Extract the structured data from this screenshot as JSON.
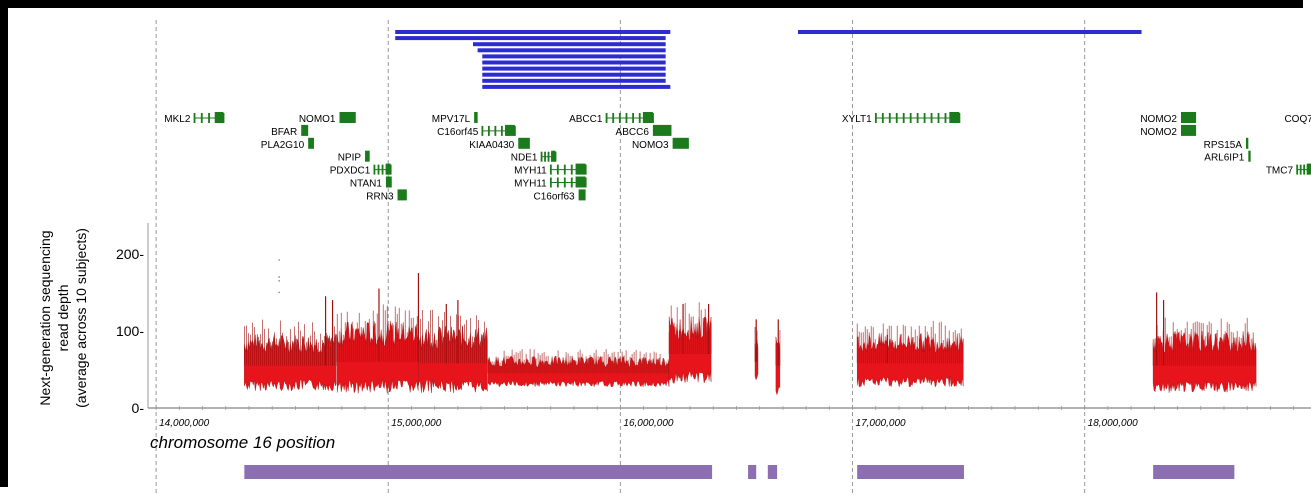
{
  "chart_data": {
    "type": "area",
    "xlabel": "chromosome  16 position",
    "ylabel_lines": [
      "Next-generation sequencing",
      "read depth",
      "(average across 10 subjects)"
    ],
    "xlim": [
      13965000,
      18975000
    ],
    "ylim": [
      0,
      240
    ],
    "x_ticks": [
      {
        "value": 14000000,
        "label": "14,000,000"
      },
      {
        "value": 15000000,
        "label": "15,000,000"
      },
      {
        "value": 16000000,
        "label": "16,000,000"
      },
      {
        "value": 17000000,
        "label": "17,000,000"
      },
      {
        "value": 18000000,
        "label": "18,000,000"
      }
    ],
    "y_ticks": [
      {
        "value": 0,
        "label": "0-"
      },
      {
        "value": 100,
        "label": "100-"
      },
      {
        "value": 200,
        "label": "200-"
      }
    ],
    "gridlines_x": [
      14000000,
      15000000,
      16000000,
      17000000,
      18000000
    ],
    "colors": {
      "depth": "#e8141b",
      "depth_dark": "#a01010",
      "gene": "#1b7a1b",
      "segdup": "#2c2cd0",
      "region": "#8c6fb0"
    },
    "segdup_bars": [
      {
        "start": 15030000,
        "end": 16215000,
        "row": 0
      },
      {
        "start": 15030000,
        "end": 16195000,
        "row": 1
      },
      {
        "start": 15365000,
        "end": 16195000,
        "row": 2
      },
      {
        "start": 15385000,
        "end": 16195000,
        "row": 3
      },
      {
        "start": 15405000,
        "end": 16195000,
        "row": 4
      },
      {
        "start": 15405000,
        "end": 16195000,
        "row": 5
      },
      {
        "start": 15405000,
        "end": 16195000,
        "row": 6
      },
      {
        "start": 15405000,
        "end": 16195000,
        "row": 7
      },
      {
        "start": 15405000,
        "end": 16195000,
        "row": 8
      },
      {
        "start": 15405000,
        "end": 16215000,
        "row": 9
      },
      {
        "start": 16765000,
        "end": 18245000,
        "row": 0
      }
    ],
    "genes": [
      {
        "name": "MKL2",
        "start": 14165000,
        "end": 14290000,
        "row": 0,
        "style": "exons",
        "label_side": "left"
      },
      {
        "name": "NOMO1",
        "start": 14790000,
        "end": 14860000,
        "row": 0,
        "style": "box",
        "label_side": "left"
      },
      {
        "name": "BFAR",
        "start": 14625000,
        "end": 14655000,
        "row": 1,
        "style": "box",
        "label_side": "left"
      },
      {
        "name": "PLA2G10",
        "start": 14655000,
        "end": 14680000,
        "row": 2,
        "style": "thin",
        "label_side": "left"
      },
      {
        "name": "NPIP",
        "start": 14900000,
        "end": 14920000,
        "row": 3,
        "style": "box",
        "label_side": "left"
      },
      {
        "name": "PDXDC1",
        "start": 14940000,
        "end": 15010000,
        "row": 4,
        "style": "exons",
        "label_side": "left"
      },
      {
        "name": "NTAN1",
        "start": 14990000,
        "end": 15015000,
        "row": 5,
        "style": "thin",
        "label_side": "left"
      },
      {
        "name": "RRN3",
        "start": 15040000,
        "end": 15080000,
        "row": 6,
        "style": "box",
        "label_side": "left"
      },
      {
        "name": "MPV17L",
        "start": 15370000,
        "end": 15385000,
        "row": 0,
        "style": "thin",
        "label_side": "left"
      },
      {
        "name": "C16orf45",
        "start": 15405000,
        "end": 15545000,
        "row": 1,
        "style": "exons",
        "label_side": "left"
      },
      {
        "name": "KIAA0430",
        "start": 15560000,
        "end": 15610000,
        "row": 2,
        "style": "box",
        "label_side": "left"
      },
      {
        "name": "NDE1",
        "start": 15660000,
        "end": 15720000,
        "row": 3,
        "style": "exons",
        "label_side": "left"
      },
      {
        "name": "MYH11",
        "start": 15700000,
        "end": 15850000,
        "row": 4,
        "style": "exons",
        "label_side": "left"
      },
      {
        "name": "MYH11",
        "start": 15700000,
        "end": 15850000,
        "row": 5,
        "style": "exons",
        "label_side": "left"
      },
      {
        "name": "C16orf63",
        "start": 15820000,
        "end": 15850000,
        "row": 6,
        "style": "box",
        "label_side": "left"
      },
      {
        "name": "ABCC1",
        "start": 15940000,
        "end": 16140000,
        "row": 0,
        "style": "exons",
        "label_side": "left"
      },
      {
        "name": "ABCC6",
        "start": 16140000,
        "end": 16220000,
        "row": 1,
        "style": "box",
        "label_side": "left"
      },
      {
        "name": "NOMO3",
        "start": 16225000,
        "end": 16295000,
        "row": 2,
        "style": "box",
        "label_side": "left"
      },
      {
        "name": "XYLT1",
        "start": 17100000,
        "end": 17460000,
        "row": 0,
        "style": "exons",
        "label_side": "left"
      },
      {
        "name": "NOMO2",
        "start": 18415000,
        "end": 18480000,
        "row": 0,
        "style": "box",
        "label_side": "left"
      },
      {
        "name": "NOMO2",
        "start": 18415000,
        "end": 18480000,
        "row": 1,
        "style": "box",
        "label_side": "left"
      },
      {
        "name": "RPS15A",
        "start": 18695000,
        "end": 18705000,
        "row": 2,
        "style": "thin",
        "label_side": "left"
      },
      {
        "name": "ARL6IP1",
        "start": 18705000,
        "end": 18715000,
        "row": 3,
        "style": "thin",
        "label_side": "left"
      },
      {
        "name": "COQ7",
        "start": 19000000,
        "end": 19000000,
        "row": 0,
        "style": "none",
        "label_side": "left"
      },
      {
        "name": "TMC7",
        "start": 18915000,
        "end": 18975000,
        "row": 4,
        "style": "exons",
        "label_side": "left"
      }
    ],
    "depth_segments": [
      {
        "start": 14380000,
        "end": 14780000,
        "mean": 55,
        "band": 30,
        "peaks": [
          {
            "x": 14730000,
            "y": 145
          },
          {
            "x": 14760000,
            "y": 140
          }
        ]
      },
      {
        "start": 14780000,
        "end": 15130000,
        "mean": 60,
        "band": 38,
        "peaks": [
          {
            "x": 14960000,
            "y": 155
          },
          {
            "x": 15130000,
            "y": 175
          }
        ]
      },
      {
        "start": 15130000,
        "end": 15430000,
        "mean": 58,
        "band": 35,
        "peaks": [
          {
            "x": 15300000,
            "y": 140
          },
          {
            "x": 15250000,
            "y": 135
          }
        ]
      },
      {
        "start": 15430000,
        "end": 16210000,
        "mean": 45,
        "band": 16,
        "peaks": []
      },
      {
        "start": 16210000,
        "end": 16395000,
        "mean": 70,
        "band": 35,
        "peaks": [
          {
            "x": 16270000,
            "y": 135
          },
          {
            "x": 16380000,
            "y": 135
          }
        ]
      },
      {
        "start": 16580000,
        "end": 16595000,
        "mean": 60,
        "band": 25,
        "peaks": [
          {
            "x": 16585000,
            "y": 115
          }
        ]
      },
      {
        "start": 16670000,
        "end": 16690000,
        "mean": 55,
        "band": 35,
        "peaks": [
          {
            "x": 16680000,
            "y": 115
          }
        ]
      },
      {
        "start": 17020000,
        "end": 17480000,
        "mean": 58,
        "band": 28,
        "peaks": [
          {
            "x": 17150000,
            "y": 95
          }
        ]
      },
      {
        "start": 18295000,
        "end": 18740000,
        "mean": 55,
        "band": 32,
        "peaks": [
          {
            "x": 18310000,
            "y": 150
          },
          {
            "x": 18340000,
            "y": 140
          }
        ]
      }
    ],
    "outlier_points": [
      {
        "x": 14530000,
        "y": 192
      },
      {
        "x": 14530000,
        "y": 170
      },
      {
        "x": 14530000,
        "y": 165
      },
      {
        "x": 14530000,
        "y": 150
      }
    ],
    "regions": [
      {
        "start": 14380000,
        "end": 16395000
      },
      {
        "start": 16550000,
        "end": 16585000
      },
      {
        "start": 16635000,
        "end": 16675000
      },
      {
        "start": 17020000,
        "end": 17480000
      },
      {
        "start": 18295000,
        "end": 18645000
      }
    ]
  }
}
